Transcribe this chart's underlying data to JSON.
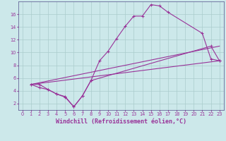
{
  "bg_color": "#cce8ea",
  "line_color": "#993399",
  "grid_color": "#aacccc",
  "xlabel": "Windchill (Refroidissement éolien,°C)",
  "xlabel_fontsize": 6.0,
  "ylim": [
    1,
    18
  ],
  "xlim": [
    -0.5,
    23.5
  ],
  "yticks": [
    2,
    4,
    6,
    8,
    10,
    12,
    14,
    16
  ],
  "xticks": [
    0,
    1,
    2,
    3,
    4,
    5,
    6,
    7,
    8,
    9,
    10,
    11,
    12,
    13,
    14,
    15,
    16,
    17,
    18,
    19,
    20,
    21,
    22,
    23
  ],
  "curve1_x": [
    1,
    2,
    3,
    4,
    5,
    6,
    7,
    8,
    9,
    10,
    11,
    12,
    13,
    14,
    15,
    16,
    17,
    21,
    22,
    23
  ],
  "curve1_y": [
    5.0,
    5.0,
    4.2,
    3.5,
    3.0,
    1.5,
    3.2,
    5.6,
    8.7,
    10.2,
    12.2,
    14.1,
    15.7,
    15.7,
    17.5,
    17.3,
    16.3,
    13.0,
    9.0,
    8.7
  ],
  "curve2_x": [
    1,
    2,
    3,
    4,
    5,
    6,
    7,
    8,
    22,
    23
  ],
  "curve2_y": [
    5.0,
    4.5,
    4.2,
    3.5,
    3.1,
    1.5,
    3.2,
    5.6,
    11.0,
    8.7
  ],
  "curve3_x": [
    1,
    23
  ],
  "curve3_y": [
    5.0,
    8.7
  ],
  "curve4_x": [
    1,
    23
  ],
  "curve4_y": [
    5.0,
    11.0
  ]
}
